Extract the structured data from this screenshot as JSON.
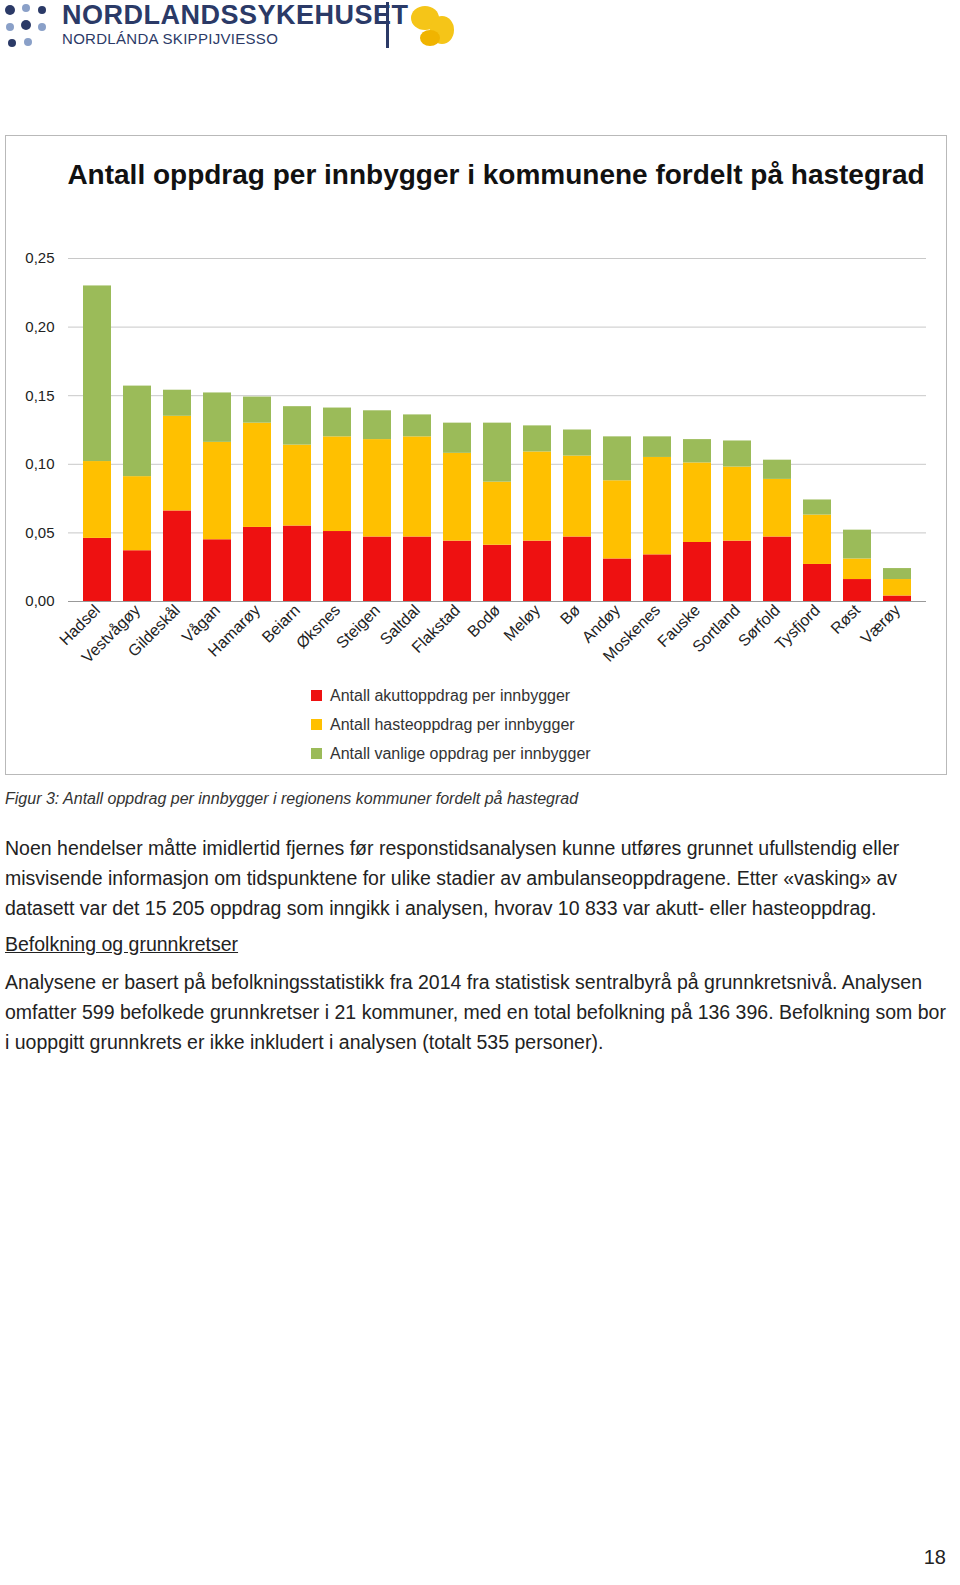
{
  "header": {
    "name": "NORDLANDSSYKEHUSET",
    "subtitle": "NORDLÁNDA SKIPPIJVIESSO"
  },
  "chart_data": {
    "type": "bar",
    "stacked": true,
    "grid": true,
    "legend": "bottom",
    "title": "Antall oppdrag per innbygger i kommunene fordelt på hastegrad",
    "categories": [
      "Hadsel",
      "Vestvågøy",
      "Gildeskål",
      "Vågan",
      "Hamarøy",
      "Beiarn",
      "Øksnes",
      "Steigen",
      "Saltdal",
      "Flakstad",
      "Bodø",
      "Meløy",
      "Bø",
      "Andøy",
      "Moskenes",
      "Fauske",
      "Sortland",
      "Sørfold",
      "Tysfjord",
      "Røst",
      "Værøy"
    ],
    "series": [
      {
        "name": "Antall akuttoppdrag per innbygger",
        "color": "#ee1111",
        "values": [
          0.046,
          0.037,
          0.066,
          0.045,
          0.054,
          0.055,
          0.051,
          0.047,
          0.047,
          0.044,
          0.041,
          0.044,
          0.047,
          0.031,
          0.034,
          0.043,
          0.044,
          0.047,
          0.027,
          0.016,
          0.004
        ]
      },
      {
        "name": "Antall hasteoppdrag per innbygger",
        "color": "#ffc000",
        "values": [
          0.056,
          0.054,
          0.069,
          0.071,
          0.076,
          0.059,
          0.069,
          0.071,
          0.073,
          0.064,
          0.046,
          0.065,
          0.059,
          0.057,
          0.071,
          0.058,
          0.054,
          0.042,
          0.036,
          0.015,
          0.012
        ]
      },
      {
        "name": "Antall vanlige oppdrag per innbygger",
        "color": "#9bbb59",
        "values": [
          0.128,
          0.066,
          0.019,
          0.036,
          0.019,
          0.028,
          0.021,
          0.021,
          0.016,
          0.022,
          0.043,
          0.019,
          0.019,
          0.032,
          0.015,
          0.017,
          0.019,
          0.014,
          0.011,
          0.021,
          0.008
        ]
      }
    ],
    "ylim": [
      0,
      0.25
    ],
    "yticks": [
      {
        "value": 0,
        "label": "0,00"
      },
      {
        "value": 0.05,
        "label": "0,05"
      },
      {
        "value": 0.1,
        "label": "0,10"
      },
      {
        "value": 0.15,
        "label": "0,15"
      },
      {
        "value": 0.2,
        "label": "0,20"
      },
      {
        "value": 0.25,
        "label": "0,25"
      }
    ]
  },
  "caption": "Figur 3: Antall oppdrag per innbygger i regionens kommuner fordelt på hastegrad",
  "blocks": [
    {
      "type": "paragraph",
      "text": "Noen hendelser måtte imidlertid fjernes før responstidsanalysen kunne utføres grunnet ufullstendig eller misvisende informasjon om tidspunktene for ulike stadier av ambulanseoppdragene. Etter «vasking» av datasett var det 15 205 oppdrag som inngikk i analysen, hvorav 10 833 var akutt- eller hasteoppdrag."
    },
    {
      "type": "heading",
      "text": "Befolkning og grunnkretser"
    },
    {
      "type": "paragraph",
      "text": "Analysene er basert på befolkningsstatistikk fra 2014 fra statistisk sentralbyrå på grunnkretsnivå. Analysen omfatter 599 befolkede grunnkretser i 21 kommuner, med en total befolkning på 136 396. Befolkning som bor i uoppgitt grunnkrets er ikke inkludert i analysen (totalt 535 personer)."
    }
  ],
  "page_number": "18"
}
